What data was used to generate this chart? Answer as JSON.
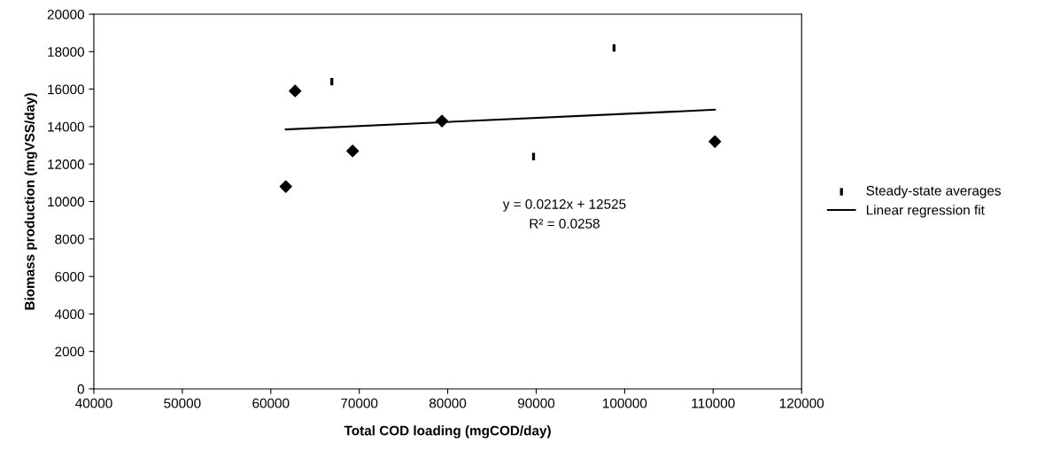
{
  "chart_data": {
    "type": "scatter",
    "xlabel": "Total COD loading (mgCOD/day)",
    "ylabel": "Biomass production (mgVSS/day)",
    "xlim": [
      40000,
      120000
    ],
    "xticks": [
      40000,
      50000,
      60000,
      70000,
      80000,
      90000,
      100000,
      110000,
      120000
    ],
    "ylim": [
      0,
      20000
    ],
    "yticks": [
      0,
      2000,
      4000,
      6000,
      8000,
      10000,
      12000,
      14000,
      16000,
      18000,
      20000
    ],
    "grid": false,
    "legend": "right",
    "annotations": [
      "y = 0.0212x + 12525",
      "R² = 0.0258"
    ],
    "series": [
      {
        "marker": "diamond",
        "color": "#000000",
        "x": [
          61700,
          62750,
          69250,
          79350,
          110200
        ],
        "values": [
          10800,
          15900,
          12700,
          14300,
          13200
        ]
      },
      {
        "name": "Steady-state averages",
        "color": "#000000",
        "x": [
          66900,
          89700,
          98800
        ],
        "values": [
          16400,
          12400,
          18200
        ]
      },
      {
        "type": "line",
        "marker": "none",
        "name": "Linear regression fit",
        "color": "#000000",
        "x": [
          61700,
          110200
        ],
        "values": [
          13850,
          14900
        ]
      }
    ]
  }
}
